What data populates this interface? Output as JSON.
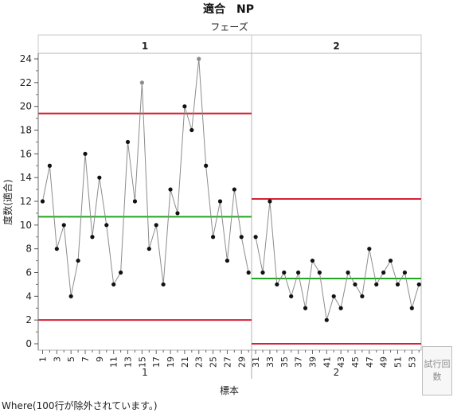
{
  "chart_data": {
    "type": "line",
    "title": "適合　NP",
    "phase_axis_label": "フェーズ",
    "xlabel": "標本",
    "ylabel": "度数(適合)",
    "ylim": [
      0,
      24
    ],
    "yticks": [
      0,
      2,
      4,
      6,
      8,
      10,
      12,
      14,
      16,
      18,
      20,
      22,
      24
    ],
    "phases": [
      {
        "name": "1",
        "samples": [
          1,
          30
        ],
        "x_tick_labels": [
          "1",
          "3",
          "5",
          "7",
          "9",
          "11",
          "13",
          "15",
          "17",
          "19",
          "21",
          "23",
          "25",
          "27",
          "29"
        ],
        "values": [
          12,
          15,
          8,
          10,
          4,
          7,
          16,
          9,
          14,
          10,
          5,
          6,
          17,
          12,
          22,
          8,
          10,
          5,
          13,
          11,
          20,
          18,
          24,
          15,
          9,
          12,
          7,
          13,
          9,
          6
        ],
        "highlighted_points": [
          15,
          23
        ],
        "ucl": 19.4,
        "center": 10.7,
        "lcl": 2.0
      },
      {
        "name": "2",
        "samples": [
          31,
          54
        ],
        "x_tick_labels": [
          "31",
          "33",
          "35",
          "37",
          "39",
          "41",
          "43",
          "45",
          "47",
          "49",
          "51",
          "53"
        ],
        "values": [
          9,
          6,
          12,
          5,
          6,
          4,
          6,
          3,
          7,
          6,
          2,
          4,
          3,
          6,
          5,
          4,
          8,
          5,
          6,
          7,
          5,
          6,
          3,
          5
        ],
        "highlighted_points": [],
        "ucl": 12.2,
        "center": 5.5,
        "lcl": 0.0
      }
    ],
    "colors": {
      "limit_line": "#d62035",
      "center_line": "#1fa51f",
      "series_line": "#8c8c8c",
      "point": "#111111",
      "highlight_point": "#8c8c8c"
    },
    "grid": false
  },
  "button": {
    "label_line1": "試行回",
    "label_line2": "数"
  },
  "footer": {
    "text": "Where(100行が除外されています。)"
  }
}
